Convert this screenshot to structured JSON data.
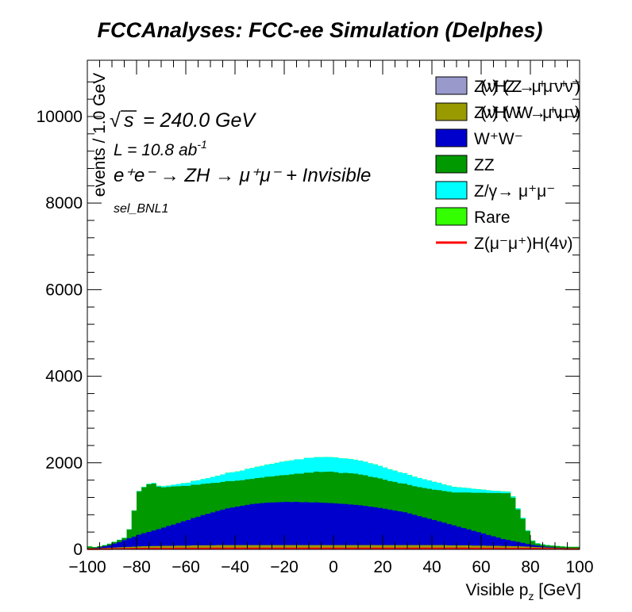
{
  "title": "FCCAnalyses: FCC-ee Simulation (Delphes)",
  "annotations": {
    "sqrt_s": "= 240.0 GeV",
    "sqrt_s_symbol": "s",
    "lumi_prefix": "L = 10.8 ab",
    "lumi_exp": "-1",
    "process": "e⁺e⁻ → ZH → μ⁺μ⁻ + Invisible",
    "selection": "sel_BNL1"
  },
  "chart_data": {
    "type": "area",
    "stacked": true,
    "xlabel": "Visible p_z [GeV]",
    "xlabel_main": "Visible p",
    "xlabel_sub": "z",
    "xlabel_unit": " [GeV]",
    "ylabel": "events / 1.0 GeV",
    "xlim": [
      -100,
      100
    ],
    "ylim": [
      0,
      11300
    ],
    "x_ticks": [
      "−100",
      "−80",
      "−60",
      "−40",
      "−20",
      "0",
      "20",
      "40",
      "60",
      "80",
      "100"
    ],
    "y_ticks": [
      "0",
      "2000",
      "4000",
      "6000",
      "8000",
      "10000"
    ],
    "legend_position": "top-right",
    "x": [
      -100,
      -98,
      -96,
      -94,
      -92,
      -90,
      -88,
      -86,
      -84,
      -82,
      -80,
      -78,
      -76,
      -74,
      -72,
      -70,
      -68,
      -66,
      -64,
      -62,
      -60,
      -58,
      -56,
      -54,
      -52,
      -50,
      -48,
      -46,
      -44,
      -42,
      -40,
      -38,
      -36,
      -34,
      -32,
      -30,
      -28,
      -26,
      -24,
      -22,
      -20,
      -18,
      -16,
      -14,
      -12,
      -10,
      -8,
      -6,
      -4,
      -2,
      0,
      2,
      4,
      6,
      8,
      10,
      12,
      14,
      16,
      18,
      20,
      22,
      24,
      26,
      28,
      30,
      32,
      34,
      36,
      38,
      40,
      42,
      44,
      46,
      48,
      50,
      52,
      54,
      56,
      58,
      60,
      62,
      64,
      66,
      68,
      70,
      72,
      74,
      76,
      78,
      80,
      82,
      84,
      86,
      88,
      90,
      92,
      94,
      96,
      98
    ],
    "series": [
      {
        "name": "Z(νν̄)H(ZZ→μ⁺μ⁻ν⁺ν⁻)",
        "color": "#9999cc",
        "type": "area",
        "values": [
          2,
          2,
          2,
          2,
          2,
          2,
          2,
          2,
          2,
          2,
          3,
          3,
          3,
          3,
          3,
          3,
          3,
          3,
          3,
          3,
          3,
          3,
          3,
          3,
          3,
          3,
          3,
          3,
          3,
          3,
          3,
          3,
          3,
          3,
          3,
          3,
          3,
          3,
          3,
          3,
          3,
          3,
          3,
          3,
          3,
          3,
          3,
          3,
          3,
          3,
          3,
          3,
          3,
          3,
          3,
          3,
          3,
          3,
          3,
          3,
          3,
          3,
          3,
          3,
          3,
          3,
          3,
          3,
          3,
          3,
          3,
          3,
          3,
          3,
          3,
          3,
          3,
          3,
          3,
          3,
          3,
          3,
          3,
          3,
          3,
          3,
          3,
          3,
          3,
          3,
          3,
          2,
          2,
          2,
          2,
          2,
          2,
          2,
          2,
          2
        ]
      },
      {
        "name": "Z(νν̄)H(WW→μ⁺νμ⁻ν)",
        "color": "#999900",
        "type": "area",
        "values": [
          20,
          20,
          25,
          30,
          35,
          40,
          45,
          50,
          55,
          60,
          65,
          70,
          70,
          75,
          75,
          80,
          80,
          80,
          85,
          85,
          85,
          90,
          90,
          90,
          90,
          90,
          95,
          95,
          95,
          95,
          95,
          95,
          95,
          95,
          95,
          95,
          95,
          95,
          95,
          95,
          95,
          95,
          95,
          95,
          95,
          95,
          95,
          95,
          95,
          95,
          95,
          95,
          95,
          95,
          95,
          95,
          95,
          95,
          95,
          95,
          95,
          95,
          95,
          95,
          95,
          95,
          95,
          95,
          95,
          95,
          95,
          95,
          95,
          90,
          90,
          90,
          90,
          90,
          85,
          85,
          85,
          80,
          80,
          80,
          75,
          75,
          70,
          70,
          65,
          60,
          55,
          50,
          45,
          40,
          35,
          30,
          25,
          20,
          20,
          20
        ]
      },
      {
        "name": "W⁺W⁻",
        "color": "#0000cc",
        "type": "area",
        "values": [
          5,
          10,
          20,
          40,
          60,
          90,
          120,
          160,
          200,
          230,
          270,
          300,
          330,
          360,
          390,
          420,
          460,
          490,
          520,
          560,
          590,
          630,
          660,
          700,
          730,
          760,
          790,
          820,
          850,
          870,
          890,
          910,
          930,
          950,
          960,
          970,
          980,
          985,
          990,
          995,
          1000,
          995,
          1000,
          990,
          995,
          985,
          990,
          980,
          975,
          970,
          965,
          955,
          950,
          940,
          930,
          920,
          905,
          890,
          875,
          860,
          840,
          820,
          800,
          780,
          760,
          730,
          700,
          670,
          640,
          610,
          580,
          550,
          520,
          490,
          460,
          430,
          400,
          370,
          340,
          310,
          280,
          250,
          220,
          190,
          160,
          140,
          120,
          100,
          80,
          60,
          45,
          35,
          25,
          18,
          12,
          8,
          5,
          5,
          5,
          5
        ]
      },
      {
        "name": "ZZ",
        "color": "#009900",
        "type": "area",
        "values": [
          40,
          20,
          25,
          25,
          30,
          40,
          50,
          50,
          200,
          600,
          1000,
          1060,
          1100,
          1080,
          980,
          930,
          900,
          880,
          850,
          820,
          790,
          770,
          740,
          720,
          700,
          680,
          650,
          640,
          630,
          610,
          600,
          590,
          590,
          580,
          590,
          590,
          600,
          600,
          610,
          620,
          620,
          640,
          650,
          660,
          680,
          690,
          710,
          710,
          720,
          730,
          720,
          710,
          720,
          720,
          720,
          710,
          710,
          690,
          690,
          680,
          670,
          660,
          660,
          650,
          660,
          660,
          660,
          670,
          680,
          690,
          700,
          720,
          730,
          750,
          760,
          790,
          820,
          850,
          880,
          910,
          940,
          970,
          1000,
          1030,
          1060,
          1080,
          1000,
          750,
          560,
          300,
          90,
          45,
          40,
          35,
          35,
          35,
          35,
          30,
          30,
          30
        ]
      },
      {
        "name": "Z/γ→ μ⁺μ⁻",
        "color": "#00ffff",
        "type": "area",
        "values": [
          1,
          1,
          2,
          2,
          3,
          3,
          4,
          5,
          6,
          7,
          9,
          10,
          12,
          15,
          20,
          25,
          30,
          40,
          50,
          60,
          70,
          85,
          100,
          110,
          120,
          140,
          160,
          170,
          190,
          200,
          210,
          220,
          240,
          250,
          260,
          270,
          280,
          290,
          300,
          310,
          320,
          320,
          330,
          330,
          340,
          340,
          330,
          340,
          340,
          330,
          340,
          340,
          330,
          330,
          320,
          320,
          310,
          310,
          300,
          290,
          280,
          270,
          260,
          250,
          240,
          230,
          220,
          210,
          200,
          190,
          180,
          170,
          150,
          140,
          130,
          120,
          110,
          100,
          90,
          80,
          70,
          60,
          50,
          45,
          40,
          35,
          30,
          25,
          20,
          15,
          10,
          8,
          6,
          5,
          4,
          3,
          2,
          2,
          1,
          1
        ]
      },
      {
        "name": "Rare",
        "color": "#33ff00",
        "type": "area",
        "values": [
          2,
          2,
          2,
          2,
          2,
          2,
          2,
          2,
          2,
          2,
          3,
          3,
          3,
          3,
          3,
          3,
          3,
          3,
          3,
          3,
          3,
          3,
          3,
          3,
          3,
          3,
          3,
          3,
          3,
          3,
          3,
          3,
          3,
          3,
          3,
          3,
          3,
          3,
          3,
          3,
          3,
          3,
          3,
          3,
          3,
          3,
          3,
          3,
          3,
          3,
          3,
          3,
          3,
          3,
          3,
          3,
          3,
          3,
          3,
          3,
          3,
          3,
          3,
          3,
          3,
          3,
          3,
          3,
          3,
          3,
          3,
          3,
          3,
          3,
          3,
          3,
          3,
          3,
          3,
          3,
          3,
          3,
          3,
          3,
          3,
          3,
          3,
          3,
          3,
          3,
          3,
          2,
          2,
          2,
          2,
          2,
          2,
          2,
          2,
          2
        ]
      },
      {
        "name": "Z(μ⁻μ⁺)H(4ν)",
        "color": "#ff0000",
        "type": "line",
        "values": [
          5,
          5,
          6,
          7,
          8,
          9,
          10,
          11,
          12,
          13,
          14,
          15,
          16,
          17,
          18,
          18,
          19,
          19,
          20,
          20,
          20,
          21,
          21,
          21,
          21,
          22,
          22,
          22,
          22,
          22,
          22,
          22,
          22,
          22,
          22,
          22,
          22,
          22,
          22,
          22,
          22,
          22,
          22,
          22,
          22,
          22,
          22,
          22,
          22,
          22,
          22,
          22,
          22,
          22,
          22,
          22,
          22,
          22,
          22,
          22,
          22,
          22,
          22,
          22,
          22,
          22,
          22,
          22,
          22,
          22,
          22,
          22,
          22,
          22,
          22,
          22,
          22,
          21,
          21,
          21,
          21,
          20,
          20,
          20,
          19,
          19,
          18,
          18,
          17,
          16,
          15,
          14,
          13,
          12,
          11,
          10,
          9,
          8,
          7,
          6
        ]
      }
    ]
  }
}
